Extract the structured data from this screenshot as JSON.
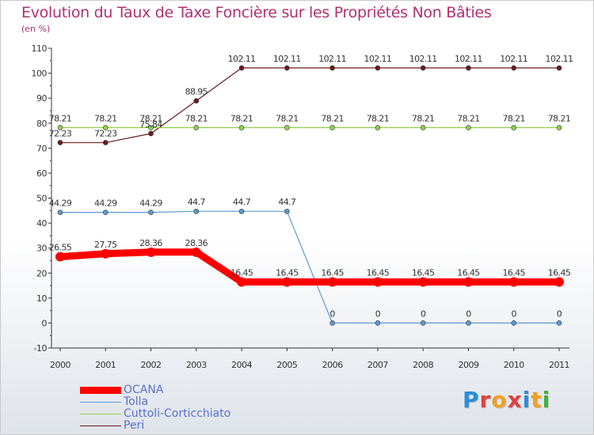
{
  "title": "Evolution du Taux de Taxe Foncière sur les Propriétés Non Bâties",
  "subtitle": "(en %)",
  "logo": {
    "text": "Proxiti",
    "colors": [
      "#2a8fd8",
      "#e04040",
      "#f0a020",
      "#e04040",
      "#2a8fd8",
      "#f0a020",
      "#40b040"
    ]
  },
  "chart_data": {
    "type": "line",
    "title": "Evolution du Taux de Taxe Foncière sur les Propriétés Non Bâties",
    "ylabel": "(en %)",
    "xlabel": "",
    "ylim": [
      -10,
      110
    ],
    "yticks": [
      -10,
      0,
      10,
      20,
      30,
      40,
      50,
      60,
      70,
      80,
      90,
      100,
      110
    ],
    "categories": [
      "2000",
      "2001",
      "2002",
      "2003",
      "2004",
      "2005",
      "2006",
      "2007",
      "2008",
      "2009",
      "2010",
      "2011"
    ],
    "series": [
      {
        "name": "Peri",
        "color": "#6b1a1a",
        "width": 1.2,
        "marker": true,
        "values": [
          72.23,
          72.23,
          75.84,
          88.95,
          102.11,
          102.11,
          102.11,
          102.11,
          102.11,
          102.11,
          102.11,
          102.11
        ],
        "labels": [
          "72.23",
          "72.23",
          "75.84",
          "88.95",
          "102.11",
          "102.11",
          "102.11",
          "102.11",
          "102.11",
          "102.11",
          "102.11",
          "102.11"
        ]
      },
      {
        "name": "Cuttoli-Corticchiato",
        "color": "#8fd04a",
        "width": 1.2,
        "marker": true,
        "values": [
          78.21,
          78.21,
          78.21,
          78.21,
          78.21,
          78.21,
          78.21,
          78.21,
          78.21,
          78.21,
          78.21,
          78.21
        ],
        "labels": [
          "78.21",
          "78.21",
          "78.21",
          "78.21",
          "78.21",
          "78.21",
          "78.21",
          "78.21",
          "78.21",
          "78.21",
          "78.21",
          "78.21"
        ]
      },
      {
        "name": "Tolla",
        "color": "#5b9ad0",
        "width": 1.2,
        "marker": true,
        "values": [
          44.29,
          44.29,
          44.29,
          44.7,
          44.7,
          44.7,
          0,
          0,
          0,
          0,
          0,
          0
        ],
        "labels": [
          "44.29",
          "44.29",
          "44.29",
          "44.7",
          "44.7",
          "44.7",
          "0",
          "0",
          "0",
          "0",
          "0",
          "0"
        ]
      },
      {
        "name": "OCANA",
        "color": "#ff0000",
        "width": 9,
        "marker": true,
        "values": [
          26.55,
          27.75,
          28.36,
          28.36,
          16.45,
          16.45,
          16.45,
          16.45,
          16.45,
          16.45,
          16.45,
          16.45
        ],
        "labels": [
          "26.55",
          "27.75",
          "28.36",
          "28.36",
          "16.45",
          "16.45",
          "16.45",
          "16.45",
          "16.45",
          "16.45",
          "16.45",
          "16.45"
        ]
      }
    ],
    "legend_order": [
      "OCANA",
      "Tolla",
      "Cuttoli-Corticchiato",
      "Peri"
    ],
    "grid": false
  }
}
